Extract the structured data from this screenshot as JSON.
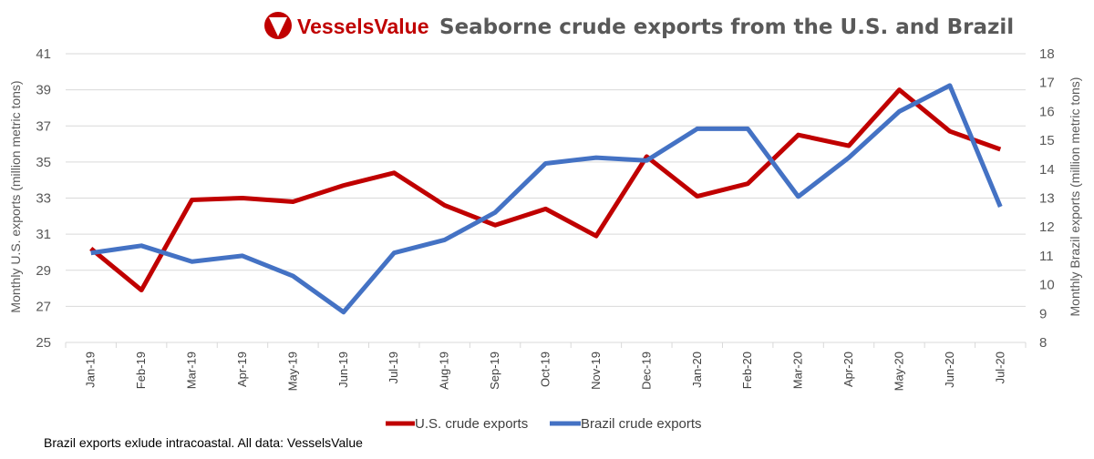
{
  "brand": {
    "name": "VesselsValue",
    "logo_color": "#c00000"
  },
  "footnote": "Brazil exports exlude intracoastal. All data: VesselsValue",
  "colors": {
    "us": "#c00000",
    "brazil": "#4472c4",
    "grid": "#d9d9d9",
    "text": "#595959"
  },
  "chart_data": {
    "type": "line",
    "title": "Seaborne crude exports from the U.S. and Brazil",
    "categories": [
      "Jan-19",
      "Feb-19",
      "Mar-19",
      "Apr-19",
      "May-19",
      "Jun-19",
      "Jul-19",
      "Aug-19",
      "Sep-19",
      "Oct-19",
      "Nov-19",
      "Dec-19",
      "Jan-20",
      "Feb-20",
      "Mar-20",
      "Apr-20",
      "May-20",
      "Jun-20",
      "Jul-20"
    ],
    "ylabel_left": "Monthly  U.S. exports (million metric tons)",
    "ylabel_right": "Monthly  Brazil  exports (million metric tons)",
    "ylim_left": [
      25,
      41
    ],
    "yticks_left": [
      25,
      27,
      29,
      31,
      33,
      35,
      37,
      39,
      41
    ],
    "ylim_right": [
      8,
      18
    ],
    "yticks_right": [
      8,
      9,
      10,
      11,
      12,
      13,
      14,
      15,
      16,
      17,
      18
    ],
    "grid": true,
    "legend_position": "bottom",
    "series": [
      {
        "name": "U.S. crude exports",
        "axis": "left",
        "color": "#c00000",
        "values": [
          30.2,
          27.9,
          32.9,
          33.0,
          32.8,
          33.7,
          34.4,
          32.6,
          31.5,
          32.4,
          30.9,
          35.3,
          33.1,
          33.8,
          36.5,
          35.9,
          39.0,
          36.7,
          35.7
        ]
      },
      {
        "name": "Brazil crude exports",
        "axis": "right",
        "color": "#4472c4",
        "values": [
          11.1,
          11.35,
          10.8,
          11.0,
          10.3,
          9.05,
          11.1,
          11.55,
          12.5,
          14.2,
          14.4,
          14.3,
          15.4,
          15.4,
          13.05,
          14.4,
          16.0,
          16.9,
          12.7
        ]
      }
    ]
  }
}
